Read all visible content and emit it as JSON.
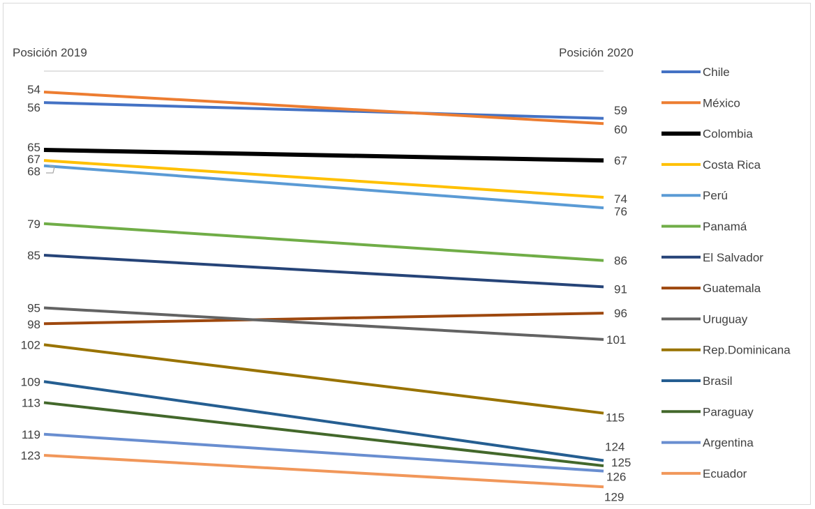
{
  "chart_data": {
    "type": "line",
    "title": "",
    "x": [
      "Posición 2019",
      "Posición 2020"
    ],
    "left_header": "Posición 2019",
    "right_header": "Posición 2020",
    "ylim": [
      50,
      130
    ],
    "y_inverted": true,
    "legend_position": "right",
    "series": [
      {
        "name": "Chile",
        "values": [
          56,
          59
        ],
        "color": "#4472C4"
      },
      {
        "name": "México",
        "values": [
          54,
          60
        ],
        "color": "#ED7D31"
      },
      {
        "name": "Colombia",
        "values": [
          65,
          67
        ],
        "color": "#000000"
      },
      {
        "name": "Costa Rica",
        "values": [
          67,
          74
        ],
        "color": "#FFC000"
      },
      {
        "name": "Perú",
        "values": [
          68,
          76
        ],
        "color": "#5B9BD5"
      },
      {
        "name": "Panamá",
        "values": [
          79,
          86
        ],
        "color": "#70AD47"
      },
      {
        "name": "El Salvador",
        "values": [
          85,
          91
        ],
        "color": "#264478"
      },
      {
        "name": "Guatemala",
        "values": [
          98,
          96
        ],
        "color": "#9E480E"
      },
      {
        "name": "Uruguay",
        "values": [
          95,
          101
        ],
        "color": "#636363"
      },
      {
        "name": "Rep.Dominicana",
        "values": [
          102,
          115
        ],
        "color": "#997300"
      },
      {
        "name": "Brasil",
        "values": [
          109,
          124
        ],
        "color": "#255E91"
      },
      {
        "name": "Paraguay",
        "values": [
          113,
          125
        ],
        "color": "#43682B"
      },
      {
        "name": "Argentina",
        "values": [
          119,
          126
        ],
        "color": "#698ED0"
      },
      {
        "name": "Ecuador",
        "values": [
          123,
          129
        ],
        "color": "#F1975A"
      }
    ]
  }
}
